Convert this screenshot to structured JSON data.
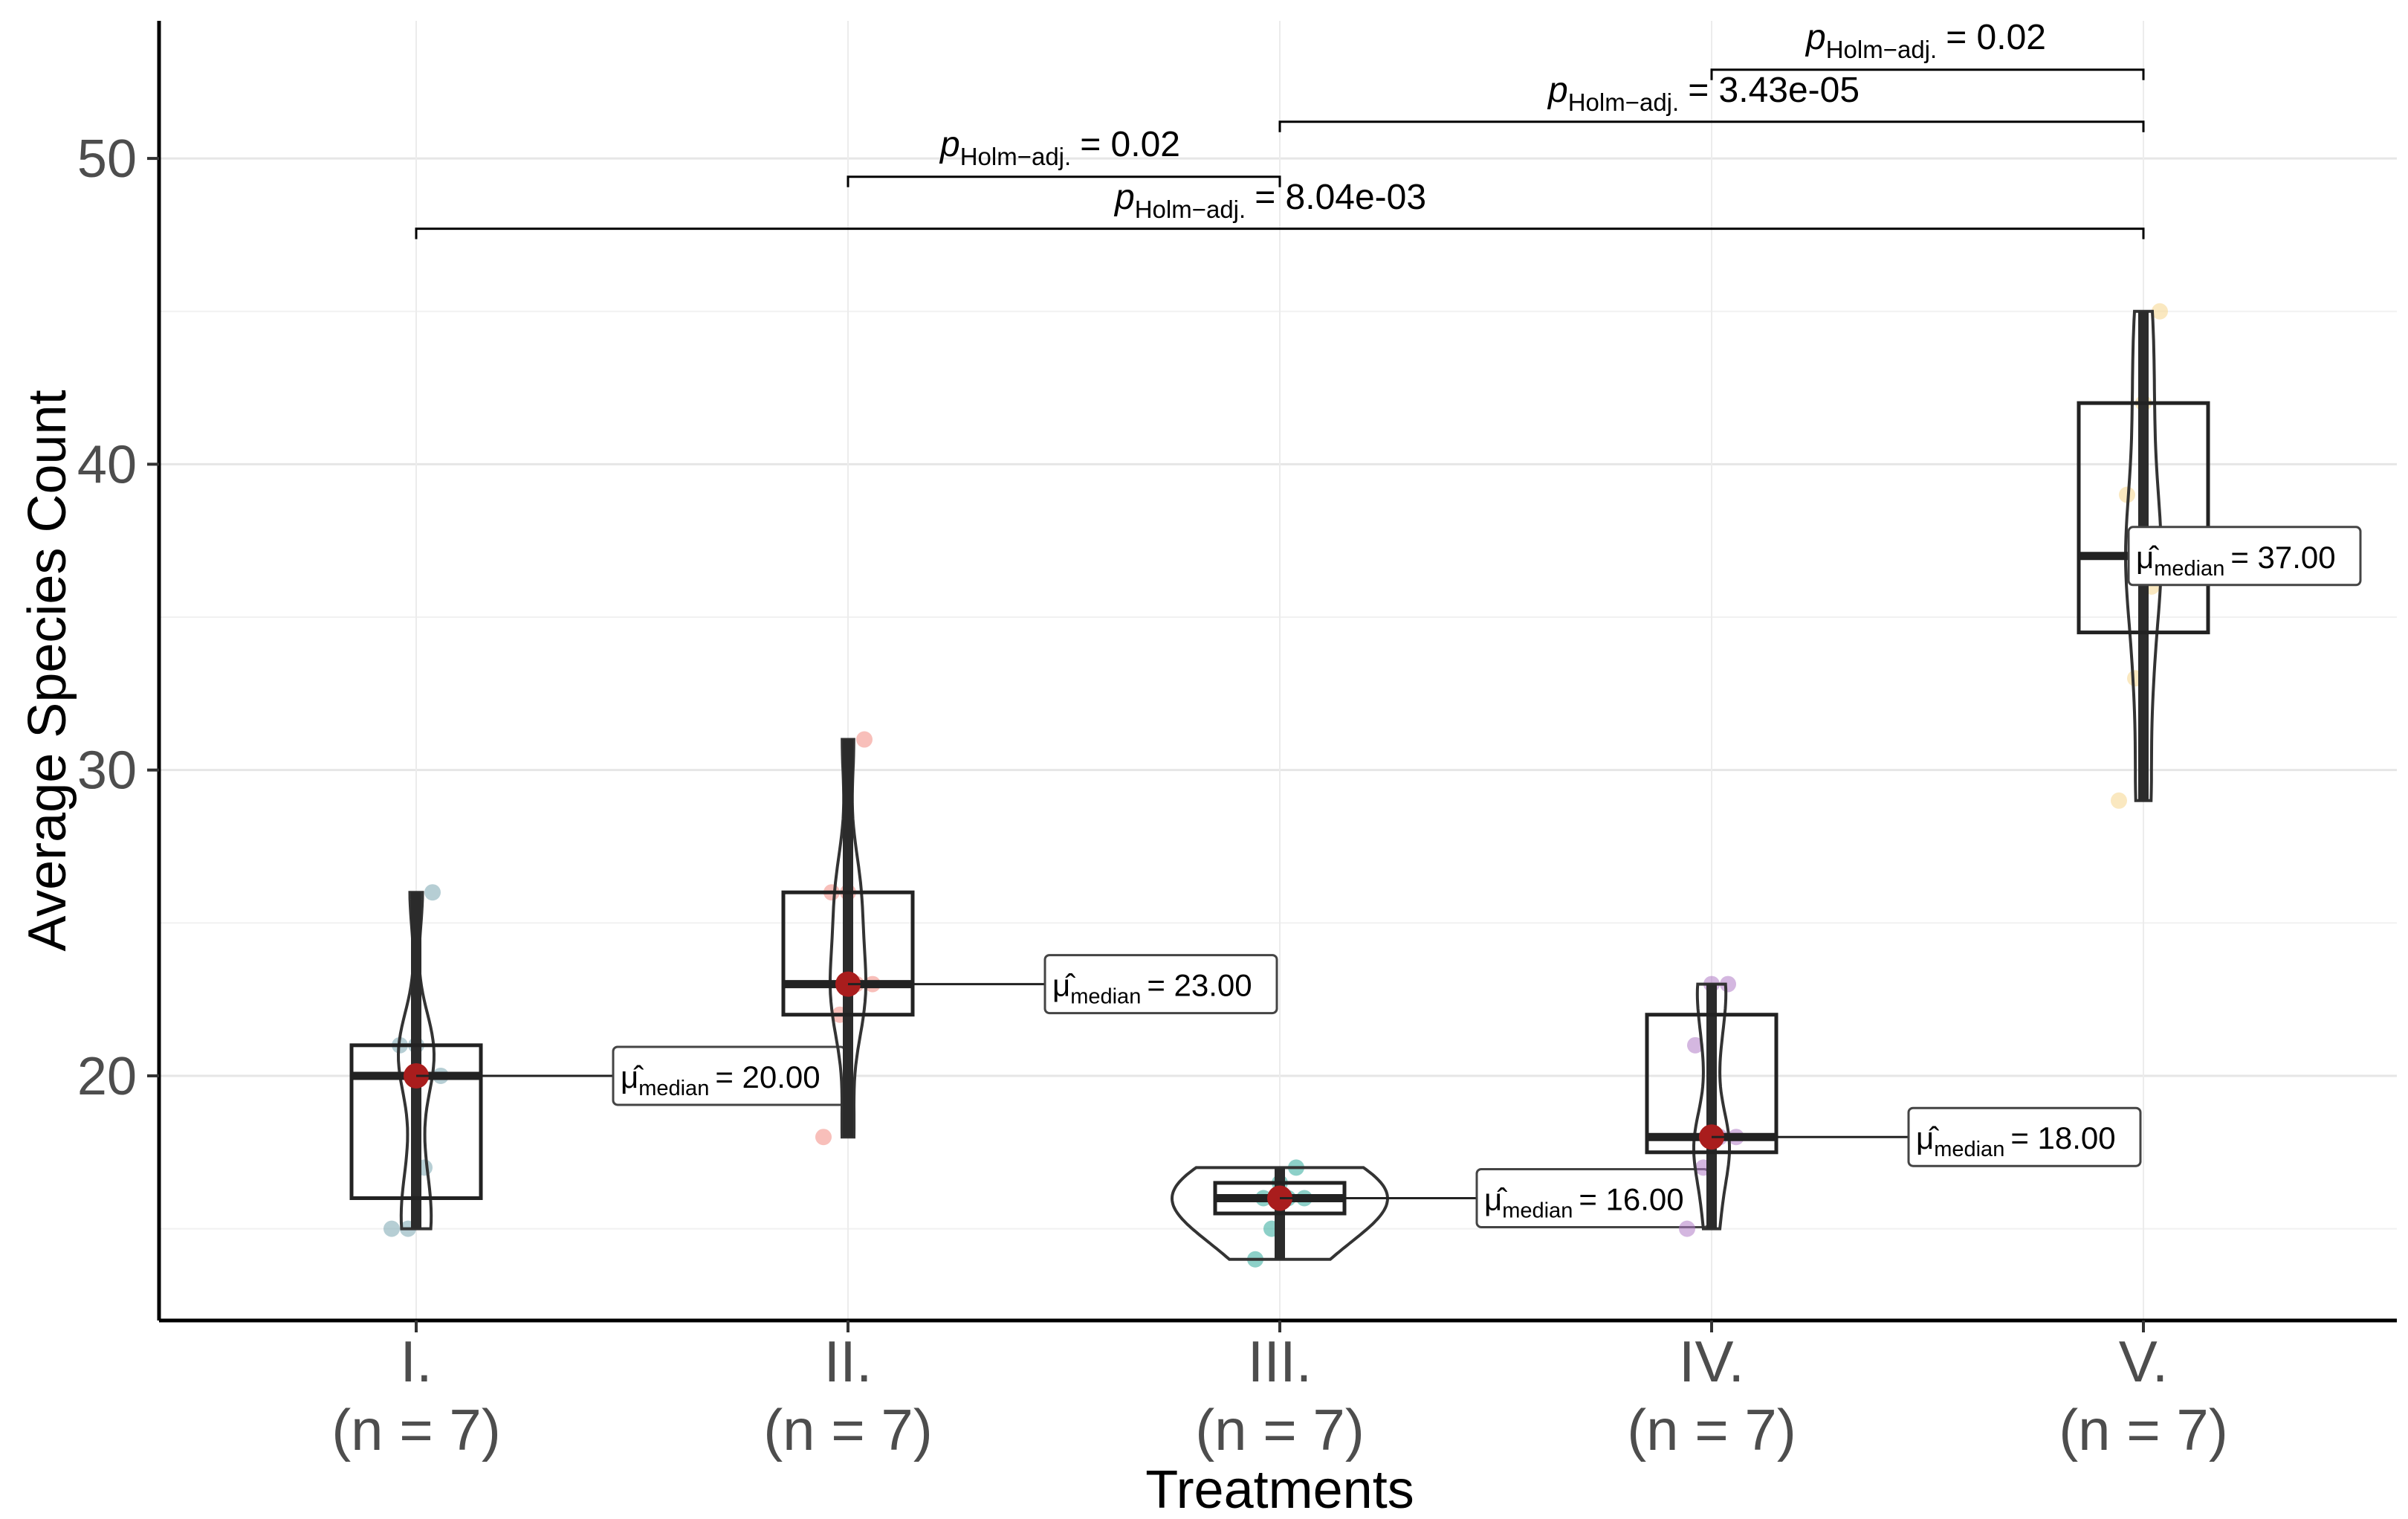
{
  "chart_data": {
    "type": "box",
    "title": "",
    "xlabel": "Treatments",
    "ylabel": "Average Species Count",
    "ylim": [
      12,
      54.5
    ],
    "y_ticks": [
      20,
      30,
      40,
      50
    ],
    "grid": "major and minor horizontal, major vertical",
    "categories": [
      {
        "label": "I.",
        "n_label": "(n = 7)",
        "color": "#7aa6b0",
        "min": 15,
        "q1": 16,
        "median": 20,
        "q3": 21,
        "max": 26,
        "points": [
          15,
          15,
          17,
          20,
          21,
          21,
          26
        ],
        "median_label": "= 20.00"
      },
      {
        "label": "II.",
        "n_label": "(n = 7)",
        "color": "#f28b82",
        "min": 18,
        "q1": 22,
        "median": 23,
        "q3": 26,
        "max": 31,
        "points": [
          18,
          22,
          23,
          23,
          26,
          26,
          31
        ],
        "median_label": "= 23.00"
      },
      {
        "label": "III.",
        "n_label": "(n = 7)",
        "color": "#2fa99a",
        "min": 14,
        "q1": 15.5,
        "median": 16,
        "q3": 16.5,
        "max": 17,
        "points": [
          14,
          15,
          16,
          16,
          16,
          16.5,
          17
        ],
        "median_label": "= 16.00"
      },
      {
        "label": "IV.",
        "n_label": "(n = 7)",
        "color": "#b07cc6",
        "min": 15,
        "q1": 17.5,
        "median": 18,
        "q3": 22,
        "max": 23,
        "points": [
          15,
          17,
          18,
          18,
          21,
          23,
          23
        ],
        "median_label": "= 18.00"
      },
      {
        "label": "V.",
        "n_label": "(n = 7)",
        "color": "#f5d58c",
        "min": 29,
        "q1": 34.5,
        "median": 37,
        "q3": 42,
        "max": 45,
        "points": [
          29,
          33,
          36,
          37,
          39,
          42,
          45
        ],
        "median_label": "= 37.00"
      }
    ],
    "median_symbol": "μ̂",
    "median_subscript": "median",
    "comparisons": [
      {
        "from": "II.",
        "to": "III.",
        "y": 49.4,
        "p_prefix": "p",
        "p_subscript": "Holm−adj.",
        "p_value": "= 0.02"
      },
      {
        "from": "I.",
        "to": "V.",
        "y": 47.7,
        "p_prefix": "p",
        "p_subscript": "Holm−adj.",
        "p_value": "= 8.04e-03"
      },
      {
        "from": "III.",
        "to": "V.",
        "y": 51.2,
        "p_prefix": "p",
        "p_subscript": "Holm−adj.",
        "p_value": "= 3.43e-05"
      },
      {
        "from": "IV.",
        "to": "V.",
        "y": 52.9,
        "p_prefix": "p",
        "p_subscript": "Holm−adj.",
        "p_value": "= 0.02"
      }
    ]
  }
}
